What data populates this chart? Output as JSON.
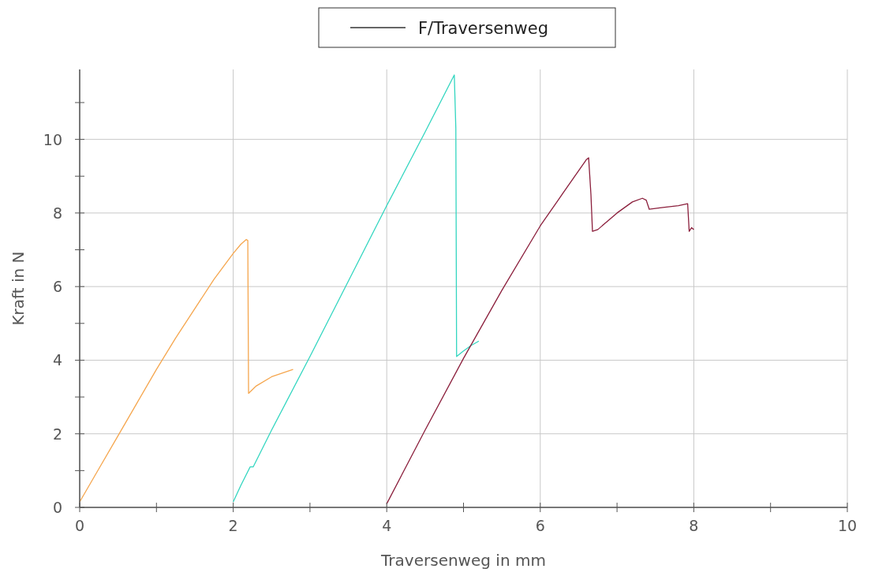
{
  "chart_data": {
    "type": "line",
    "xlabel": "Traversenweg in mm",
    "ylabel": "Kraft in N",
    "legend_title": "F/Traversenweg",
    "grid": true,
    "marker": "none",
    "line_style": "solid",
    "xlim": [
      0,
      10
    ],
    "ylim": [
      0,
      11.9
    ],
    "xticks": [
      0,
      {
        "value": 1,
        "label": null
      },
      2,
      {
        "value": 3,
        "label": null
      },
      4,
      {
        "value": 5,
        "label": null
      },
      6,
      {
        "value": 7,
        "label": null
      },
      8,
      {
        "value": 9,
        "label": null
      },
      10
    ],
    "yticks": [
      0,
      {
        "value": 1,
        "label": null
      },
      2,
      {
        "value": 3,
        "label": null
      },
      4,
      {
        "value": 5,
        "label": null
      },
      6,
      {
        "value": 7,
        "label": null
      },
      8,
      {
        "value": 9,
        "label": null
      },
      10,
      {
        "value": 11,
        "label": null
      }
    ],
    "series": [
      {
        "color": "#f5a64e",
        "x": [
          0,
          0.25,
          0.5,
          0.75,
          1.0,
          1.25,
          1.5,
          1.75,
          2.0,
          2.1,
          2.17,
          2.19,
          2.2,
          2.3,
          2.5,
          2.78
        ],
        "values": [
          0.15,
          1.05,
          1.95,
          2.85,
          3.75,
          4.6,
          5.4,
          6.2,
          6.9,
          7.15,
          7.28,
          7.25,
          3.1,
          3.3,
          3.55,
          3.75
        ]
      },
      {
        "color": "#33d6c0",
        "x": [
          2,
          2.1,
          2.22,
          2.26,
          2.5,
          3,
          3.5,
          4,
          4.5,
          4.88,
          4.9,
          4.91,
          5.0,
          5.1,
          5.2
        ],
        "values": [
          0.15,
          0.6,
          1.1,
          1.1,
          2.1,
          4.1,
          6.15,
          8.2,
          10.2,
          11.75,
          10.3,
          4.1,
          4.25,
          4.4,
          4.52
        ]
      },
      {
        "color": "#8b1f3c",
        "x": [
          4,
          4.5,
          5,
          5.5,
          6,
          6.3,
          6.6,
          6.63,
          6.66,
          6.68,
          6.75,
          7,
          7.2,
          7.33,
          7.38,
          7.42,
          7.6,
          7.8,
          7.92,
          7.94,
          7.97,
          8.0
        ],
        "values": [
          0.1,
          2.1,
          4.05,
          5.9,
          7.65,
          8.55,
          9.45,
          9.5,
          8.5,
          7.5,
          7.55,
          8.0,
          8.3,
          8.4,
          8.35,
          8.1,
          8.15,
          8.2,
          8.25,
          7.5,
          7.6,
          7.55
        ]
      }
    ]
  }
}
